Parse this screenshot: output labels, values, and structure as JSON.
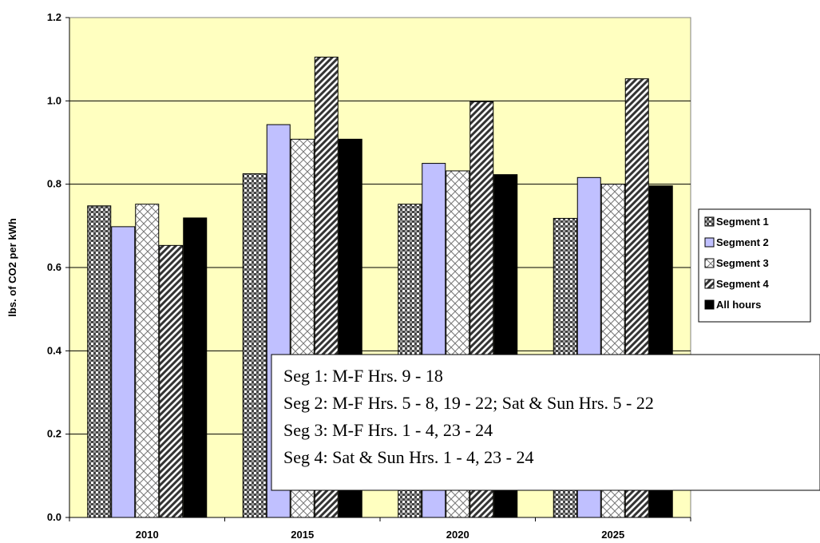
{
  "chart_data": {
    "type": "bar",
    "categories": [
      "2010",
      "2015",
      "2020",
      "2025"
    ],
    "series": [
      {
        "name": "Segment 1",
        "values": [
          0.748,
          0.825,
          0.752,
          0.718
        ],
        "pattern": "checker"
      },
      {
        "name": "Segment 2",
        "values": [
          0.698,
          0.943,
          0.85,
          0.816
        ],
        "pattern": "solid"
      },
      {
        "name": "Segment 3",
        "values": [
          0.752,
          0.908,
          0.832,
          0.8
        ],
        "pattern": "crosshatch"
      },
      {
        "name": "Segment 4",
        "values": [
          0.653,
          1.105,
          0.998,
          1.053
        ],
        "pattern": "diagonal"
      },
      {
        "name": "All hours",
        "values": [
          0.719,
          0.908,
          0.823,
          0.796
        ],
        "pattern": "solid-black"
      }
    ],
    "title": "",
    "xlabel": "",
    "ylabel": "lbs. of CO2 per kWh",
    "ylim": [
      0,
      1.2
    ],
    "yticks": [
      "0.0",
      "0.2",
      "0.4",
      "0.6",
      "0.8",
      "1.0",
      "1.2"
    ],
    "grid": true,
    "legend_position": "right",
    "annotations": [
      "Seg 1: M-F Hrs. 9 - 18",
      "Seg 2: M-F Hrs. 5 - 8, 19 - 22; Sat & Sun Hrs. 5 - 22",
      "Seg 3: M-F Hrs. 1 - 4, 23 - 24",
      "Seg 4: Sat & Sun Hrs. 1 - 4, 23 - 24"
    ],
    "colors": {
      "plot_background": "#ffffc0",
      "segment2_fill": "#c0c0ff",
      "all_hours_fill": "#000000",
      "pattern_ink": "#333333"
    }
  }
}
